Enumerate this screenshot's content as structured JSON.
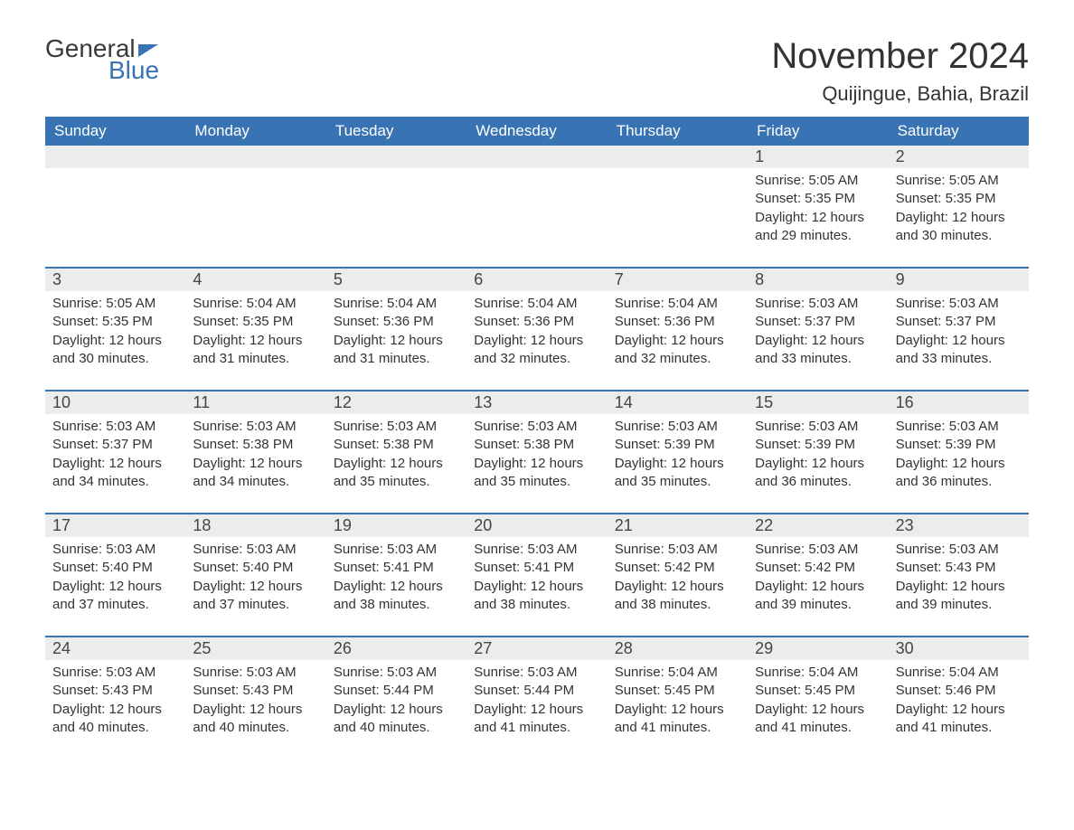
{
  "logo": {
    "word1": "General",
    "word2": "Blue"
  },
  "title": "November 2024",
  "location": "Quijingue, Bahia, Brazil",
  "colors": {
    "brand_blue": "#3873b3",
    "row_stripe": "#ececec",
    "text": "#333333",
    "background": "#ffffff"
  },
  "typography": {
    "title_fontsize": 40,
    "location_fontsize": 22,
    "dow_fontsize": 17,
    "daynum_fontsize": 18,
    "body_fontsize": 15,
    "font_family": "Arial"
  },
  "days_of_week": [
    "Sunday",
    "Monday",
    "Tuesday",
    "Wednesday",
    "Thursday",
    "Friday",
    "Saturday"
  ],
  "labels": {
    "sunrise": "Sunrise:",
    "sunset": "Sunset:",
    "daylight": "Daylight:"
  },
  "calendar": {
    "type": "month-grid",
    "columns": 7,
    "leading_blanks": 5,
    "days": [
      {
        "n": 1,
        "sunrise": "5:05 AM",
        "sunset": "5:35 PM",
        "daylight": "12 hours and 29 minutes."
      },
      {
        "n": 2,
        "sunrise": "5:05 AM",
        "sunset": "5:35 PM",
        "daylight": "12 hours and 30 minutes."
      },
      {
        "n": 3,
        "sunrise": "5:05 AM",
        "sunset": "5:35 PM",
        "daylight": "12 hours and 30 minutes."
      },
      {
        "n": 4,
        "sunrise": "5:04 AM",
        "sunset": "5:35 PM",
        "daylight": "12 hours and 31 minutes."
      },
      {
        "n": 5,
        "sunrise": "5:04 AM",
        "sunset": "5:36 PM",
        "daylight": "12 hours and 31 minutes."
      },
      {
        "n": 6,
        "sunrise": "5:04 AM",
        "sunset": "5:36 PM",
        "daylight": "12 hours and 32 minutes."
      },
      {
        "n": 7,
        "sunrise": "5:04 AM",
        "sunset": "5:36 PM",
        "daylight": "12 hours and 32 minutes."
      },
      {
        "n": 8,
        "sunrise": "5:03 AM",
        "sunset": "5:37 PM",
        "daylight": "12 hours and 33 minutes."
      },
      {
        "n": 9,
        "sunrise": "5:03 AM",
        "sunset": "5:37 PM",
        "daylight": "12 hours and 33 minutes."
      },
      {
        "n": 10,
        "sunrise": "5:03 AM",
        "sunset": "5:37 PM",
        "daylight": "12 hours and 34 minutes."
      },
      {
        "n": 11,
        "sunrise": "5:03 AM",
        "sunset": "5:38 PM",
        "daylight": "12 hours and 34 minutes."
      },
      {
        "n": 12,
        "sunrise": "5:03 AM",
        "sunset": "5:38 PM",
        "daylight": "12 hours and 35 minutes."
      },
      {
        "n": 13,
        "sunrise": "5:03 AM",
        "sunset": "5:38 PM",
        "daylight": "12 hours and 35 minutes."
      },
      {
        "n": 14,
        "sunrise": "5:03 AM",
        "sunset": "5:39 PM",
        "daylight": "12 hours and 35 minutes."
      },
      {
        "n": 15,
        "sunrise": "5:03 AM",
        "sunset": "5:39 PM",
        "daylight": "12 hours and 36 minutes."
      },
      {
        "n": 16,
        "sunrise": "5:03 AM",
        "sunset": "5:39 PM",
        "daylight": "12 hours and 36 minutes."
      },
      {
        "n": 17,
        "sunrise": "5:03 AM",
        "sunset": "5:40 PM",
        "daylight": "12 hours and 37 minutes."
      },
      {
        "n": 18,
        "sunrise": "5:03 AM",
        "sunset": "5:40 PM",
        "daylight": "12 hours and 37 minutes."
      },
      {
        "n": 19,
        "sunrise": "5:03 AM",
        "sunset": "5:41 PM",
        "daylight": "12 hours and 38 minutes."
      },
      {
        "n": 20,
        "sunrise": "5:03 AM",
        "sunset": "5:41 PM",
        "daylight": "12 hours and 38 minutes."
      },
      {
        "n": 21,
        "sunrise": "5:03 AM",
        "sunset": "5:42 PM",
        "daylight": "12 hours and 38 minutes."
      },
      {
        "n": 22,
        "sunrise": "5:03 AM",
        "sunset": "5:42 PM",
        "daylight": "12 hours and 39 minutes."
      },
      {
        "n": 23,
        "sunrise": "5:03 AM",
        "sunset": "5:43 PM",
        "daylight": "12 hours and 39 minutes."
      },
      {
        "n": 24,
        "sunrise": "5:03 AM",
        "sunset": "5:43 PM",
        "daylight": "12 hours and 40 minutes."
      },
      {
        "n": 25,
        "sunrise": "5:03 AM",
        "sunset": "5:43 PM",
        "daylight": "12 hours and 40 minutes."
      },
      {
        "n": 26,
        "sunrise": "5:03 AM",
        "sunset": "5:44 PM",
        "daylight": "12 hours and 40 minutes."
      },
      {
        "n": 27,
        "sunrise": "5:03 AM",
        "sunset": "5:44 PM",
        "daylight": "12 hours and 41 minutes."
      },
      {
        "n": 28,
        "sunrise": "5:04 AM",
        "sunset": "5:45 PM",
        "daylight": "12 hours and 41 minutes."
      },
      {
        "n": 29,
        "sunrise": "5:04 AM",
        "sunset": "5:45 PM",
        "daylight": "12 hours and 41 minutes."
      },
      {
        "n": 30,
        "sunrise": "5:04 AM",
        "sunset": "5:46 PM",
        "daylight": "12 hours and 41 minutes."
      }
    ]
  }
}
